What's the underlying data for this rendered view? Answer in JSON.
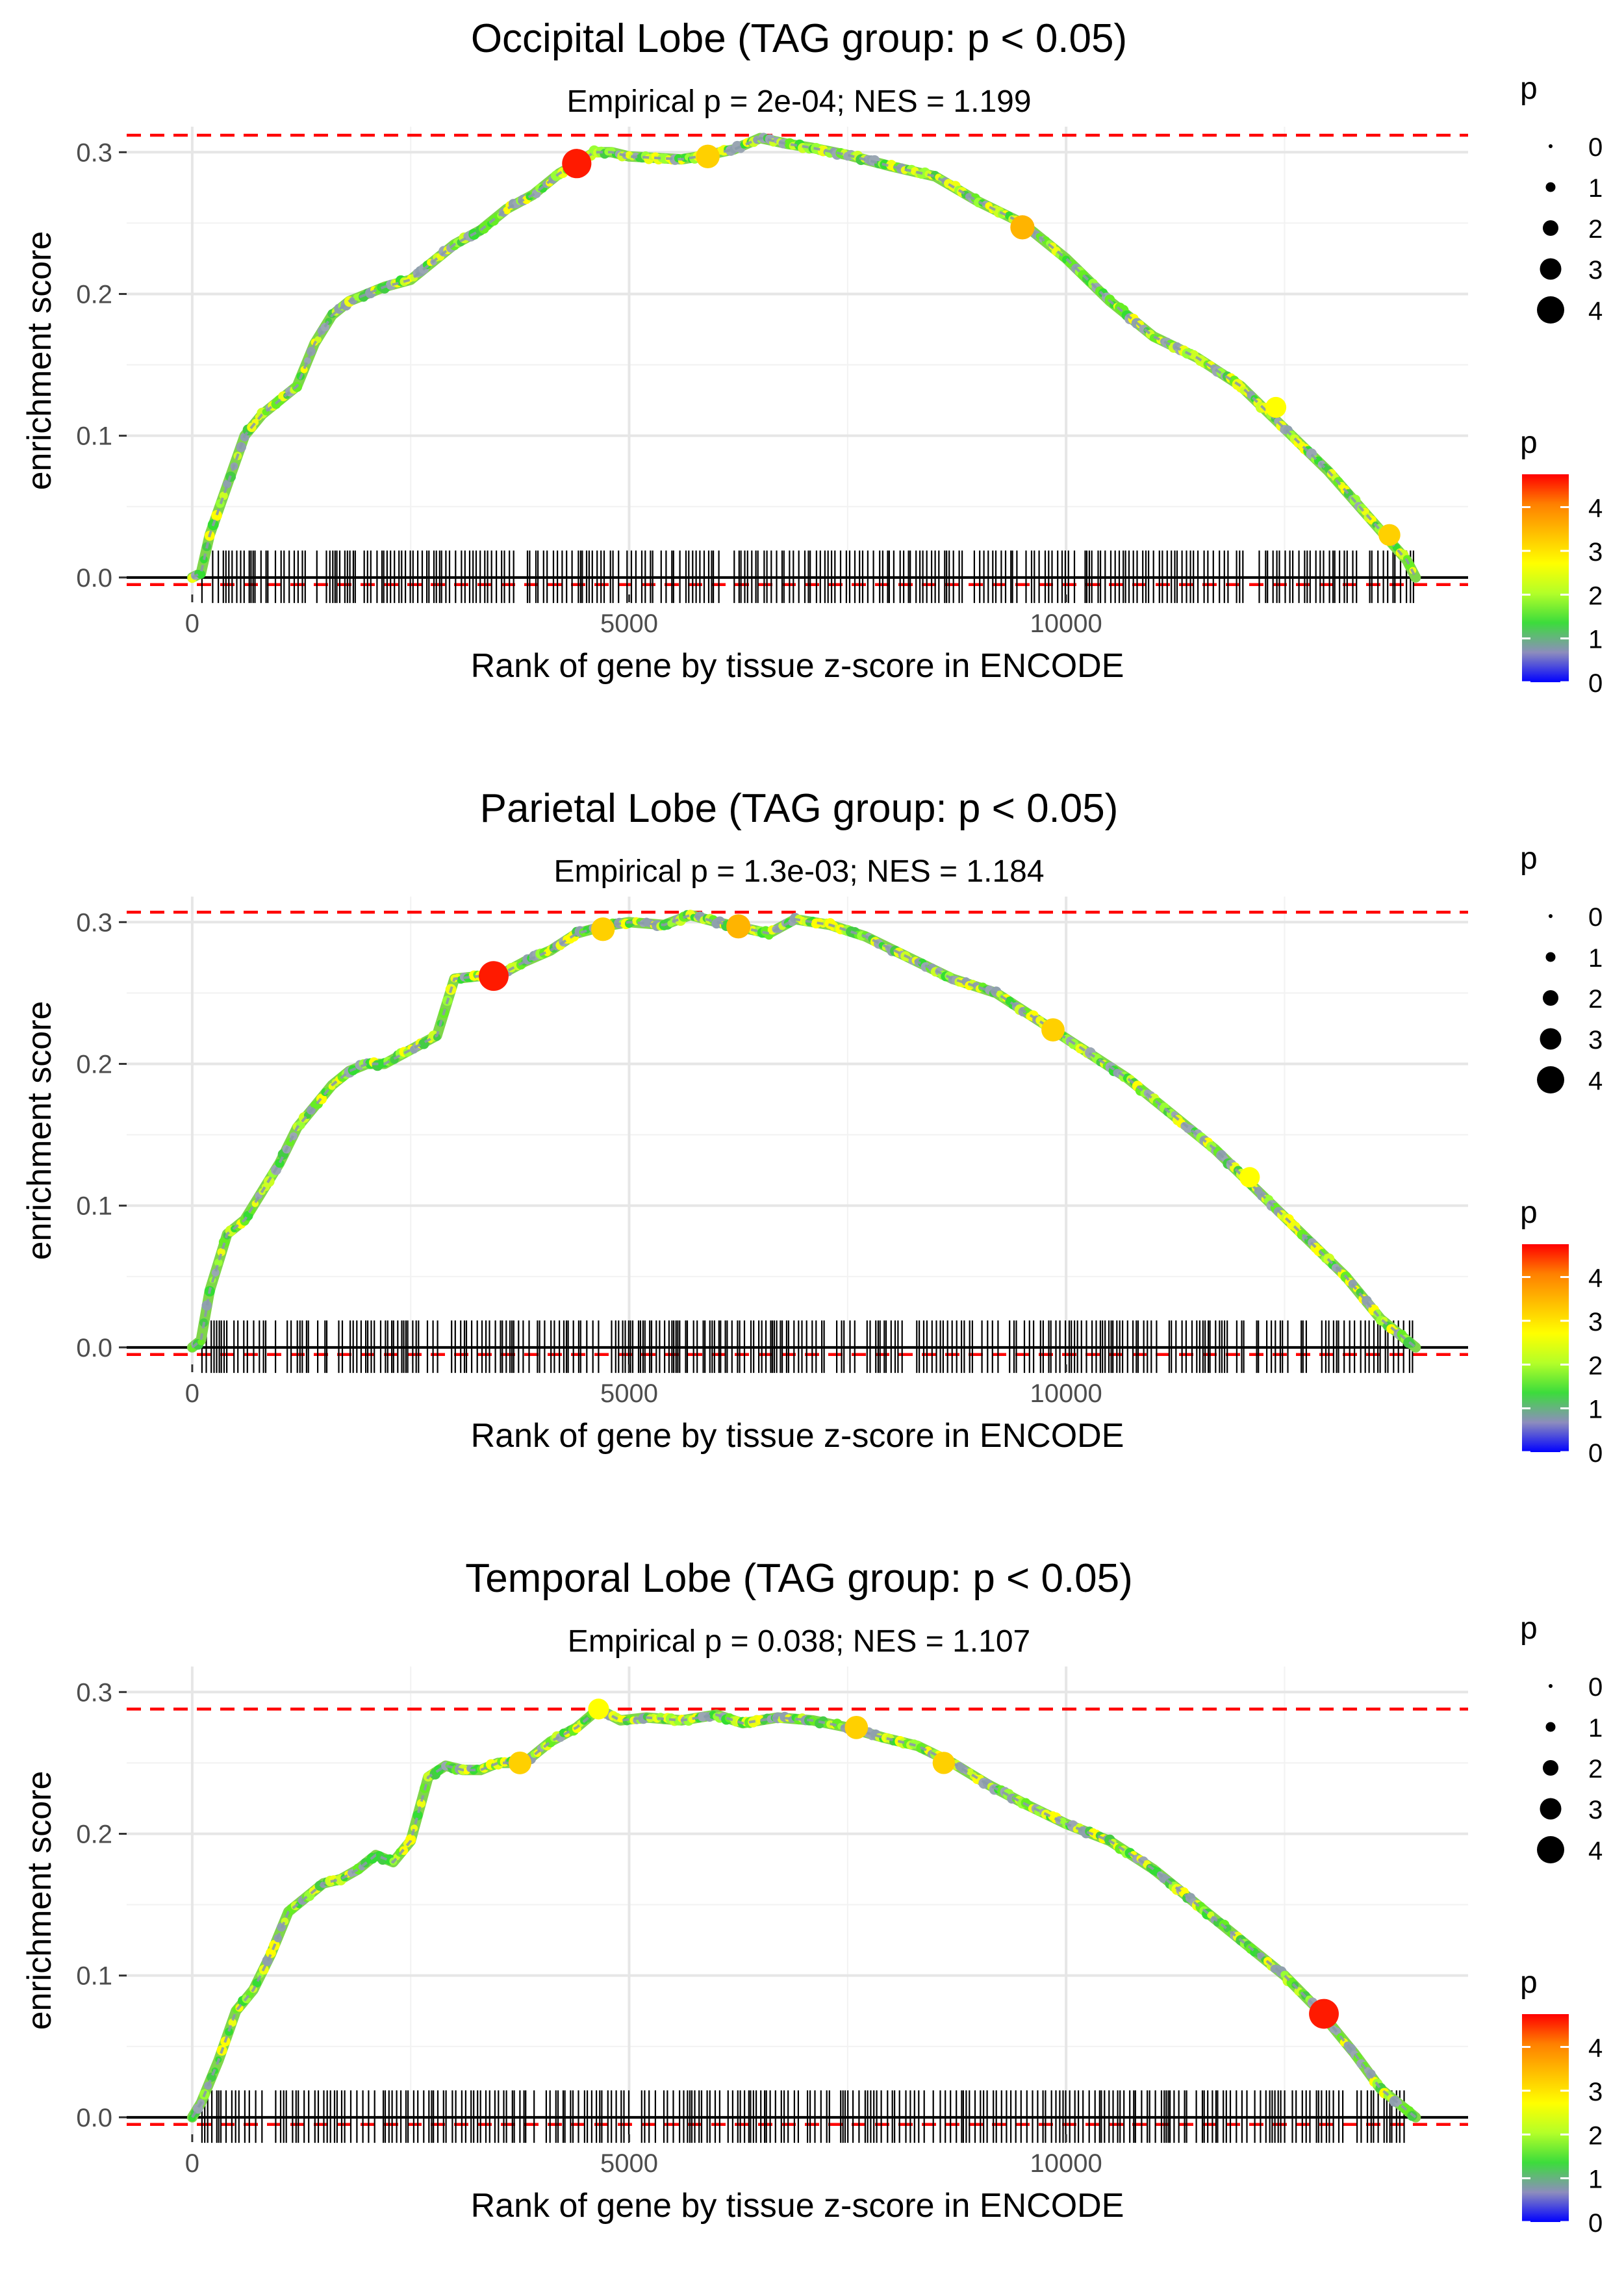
{
  "chart_data": [
    {
      "type": "line",
      "title": "Occipital Lobe (TAG group: p < 0.05)",
      "subtitle": "Empirical p = 2e-04; NES = 1.199",
      "xlabel": "Rank of gene by tissue z-score in ENCODE",
      "ylabel": "enrichment score",
      "xlim": [
        -750,
        14600
      ],
      "ylim": [
        -0.012,
        0.318
      ],
      "xticks": [
        0,
        5000,
        10000
      ],
      "xtick_labels": [
        "0",
        "5000",
        "10000"
      ],
      "yticks": [
        0.0,
        0.1,
        0.2,
        0.3
      ],
      "ytick_labels": [
        "0.0",
        "0.1",
        "0.2",
        "0.3"
      ],
      "max_es": 0.312,
      "min_es": -0.005,
      "rank_max": 14000,
      "curve": [
        [
          0,
          0.0
        ],
        [
          100,
          0.003
        ],
        [
          200,
          0.03
        ],
        [
          400,
          0.065
        ],
        [
          600,
          0.1
        ],
        [
          800,
          0.115
        ],
        [
          1000,
          0.125
        ],
        [
          1200,
          0.135
        ],
        [
          1400,
          0.165
        ],
        [
          1600,
          0.185
        ],
        [
          1800,
          0.195
        ],
        [
          2000,
          0.2
        ],
        [
          2200,
          0.205
        ],
        [
          2500,
          0.21
        ],
        [
          2800,
          0.225
        ],
        [
          3000,
          0.235
        ],
        [
          3300,
          0.245
        ],
        [
          3600,
          0.26
        ],
        [
          3900,
          0.27
        ],
        [
          4200,
          0.285
        ],
        [
          4400,
          0.292
        ],
        [
          4600,
          0.3
        ],
        [
          4800,
          0.3
        ],
        [
          5000,
          0.297
        ],
        [
          5300,
          0.296
        ],
        [
          5600,
          0.295
        ],
        [
          5900,
          0.298
        ],
        [
          6200,
          0.302
        ],
        [
          6500,
          0.31
        ],
        [
          6800,
          0.306
        ],
        [
          7100,
          0.303
        ],
        [
          7500,
          0.298
        ],
        [
          8000,
          0.29
        ],
        [
          8500,
          0.283
        ],
        [
          9000,
          0.265
        ],
        [
          9500,
          0.25
        ],
        [
          10000,
          0.225
        ],
        [
          10500,
          0.195
        ],
        [
          11000,
          0.17
        ],
        [
          11500,
          0.155
        ],
        [
          12000,
          0.135
        ],
        [
          12500,
          0.105
        ],
        [
          13000,
          0.075
        ],
        [
          13500,
          0.04
        ],
        [
          13900,
          0.012
        ],
        [
          14000,
          0.0
        ]
      ],
      "highlights": [
        [
          4400,
          0.292,
          4.6
        ],
        [
          5900,
          0.297,
          3.4
        ],
        [
          9500,
          0.247,
          3.5
        ],
        [
          12400,
          0.12,
          2.8
        ],
        [
          13700,
          0.03,
          3.0
        ]
      ],
      "hits_seed": 11,
      "size_legend": {
        "title": "p",
        "labels": [
          "0",
          "1",
          "2",
          "3",
          "4"
        ]
      },
      "color_legend": {
        "title": "p",
        "labels": [
          "4",
          "3",
          "2",
          "1",
          "0"
        ],
        "stops": [
          "#0000ff",
          "#8d8dbd",
          "#3cdc3c",
          "#b4ff28",
          "#ffff00",
          "#ffc000",
          "#ff8000",
          "#ff0000"
        ]
      }
    },
    {
      "type": "line",
      "title": "Parietal Lobe (TAG group: p < 0.05)",
      "subtitle": "Empirical p = 1.3e-03; NES = 1.184",
      "xlabel": "Rank of gene by tissue z-score in ENCODE",
      "ylabel": "enrichment score",
      "xlim": [
        -750,
        14600
      ],
      "ylim": [
        -0.012,
        0.318
      ],
      "xticks": [
        0,
        5000,
        10000
      ],
      "xtick_labels": [
        "0",
        "5000",
        "10000"
      ],
      "yticks": [
        0.0,
        0.1,
        0.2,
        0.3
      ],
      "ytick_labels": [
        "0.0",
        "0.1",
        "0.2",
        "0.3"
      ],
      "max_es": 0.307,
      "min_es": -0.005,
      "rank_max": 14000,
      "curve": [
        [
          0,
          0.0
        ],
        [
          100,
          0.005
        ],
        [
          200,
          0.04
        ],
        [
          300,
          0.06
        ],
        [
          400,
          0.08
        ],
        [
          600,
          0.09
        ],
        [
          800,
          0.11
        ],
        [
          1000,
          0.13
        ],
        [
          1200,
          0.155
        ],
        [
          1400,
          0.17
        ],
        [
          1600,
          0.185
        ],
        [
          1800,
          0.195
        ],
        [
          2000,
          0.2
        ],
        [
          2200,
          0.2
        ],
        [
          2500,
          0.21
        ],
        [
          2800,
          0.22
        ],
        [
          3000,
          0.26
        ],
        [
          3300,
          0.262
        ],
        [
          3500,
          0.262
        ],
        [
          3800,
          0.272
        ],
        [
          4100,
          0.28
        ],
        [
          4400,
          0.292
        ],
        [
          4700,
          0.297
        ],
        [
          5000,
          0.3
        ],
        [
          5400,
          0.298
        ],
        [
          5700,
          0.305
        ],
        [
          6000,
          0.3
        ],
        [
          6300,
          0.296
        ],
        [
          6600,
          0.292
        ],
        [
          6900,
          0.302
        ],
        [
          7300,
          0.298
        ],
        [
          7700,
          0.29
        ],
        [
          8200,
          0.275
        ],
        [
          8700,
          0.26
        ],
        [
          9200,
          0.25
        ],
        [
          9700,
          0.23
        ],
        [
          10200,
          0.21
        ],
        [
          10700,
          0.19
        ],
        [
          11200,
          0.165
        ],
        [
          11700,
          0.14
        ],
        [
          12200,
          0.11
        ],
        [
          12700,
          0.08
        ],
        [
          13200,
          0.05
        ],
        [
          13600,
          0.02
        ],
        [
          14000,
          0.0
        ]
      ],
      "highlights": [
        [
          3450,
          0.262,
          4.7
        ],
        [
          4700,
          0.295,
          3.4
        ],
        [
          6250,
          0.297,
          3.5
        ],
        [
          9850,
          0.224,
          3.3
        ],
        [
          12100,
          0.12,
          2.7
        ]
      ],
      "hits_seed": 23,
      "size_legend": {
        "title": "p",
        "labels": [
          "0",
          "1",
          "2",
          "3",
          "4"
        ]
      },
      "color_legend": {
        "title": "p",
        "labels": [
          "4",
          "3",
          "2",
          "1",
          "0"
        ],
        "stops": [
          "#0000ff",
          "#8d8dbd",
          "#3cdc3c",
          "#b4ff28",
          "#ffff00",
          "#ffc000",
          "#ff8000",
          "#ff0000"
        ]
      }
    },
    {
      "type": "line",
      "title": "Temporal Lobe (TAG group: p < 0.05)",
      "subtitle": "Empirical p = 0.038; NES = 1.107",
      "xlabel": "Rank of gene by tissue z-score in ENCODE",
      "ylabel": "enrichment score",
      "xlim": [
        -750,
        14600
      ],
      "ylim": [
        -0.012,
        0.318
      ],
      "xticks": [
        0,
        5000,
        10000
      ],
      "xtick_labels": [
        "0",
        "5000",
        "10000"
      ],
      "yticks": [
        0.0,
        0.1,
        0.2,
        0.3
      ],
      "ytick_labels": [
        "0.0",
        "0.1",
        "0.2",
        "0.3"
      ],
      "max_es": 0.288,
      "min_es": -0.005,
      "rank_max": 14000,
      "curve": [
        [
          0,
          0.0
        ],
        [
          100,
          0.01
        ],
        [
          300,
          0.04
        ],
        [
          500,
          0.075
        ],
        [
          700,
          0.09
        ],
        [
          900,
          0.115
        ],
        [
          1100,
          0.145
        ],
        [
          1300,
          0.155
        ],
        [
          1500,
          0.165
        ],
        [
          1700,
          0.168
        ],
        [
          1900,
          0.175
        ],
        [
          2100,
          0.185
        ],
        [
          2300,
          0.18
        ],
        [
          2500,
          0.195
        ],
        [
          2700,
          0.24
        ],
        [
          2900,
          0.248
        ],
        [
          3100,
          0.245
        ],
        [
          3300,
          0.245
        ],
        [
          3500,
          0.25
        ],
        [
          3800,
          0.25
        ],
        [
          4100,
          0.265
        ],
        [
          4400,
          0.275
        ],
        [
          4650,
          0.288
        ],
        [
          4900,
          0.28
        ],
        [
          5200,
          0.282
        ],
        [
          5600,
          0.28
        ],
        [
          6000,
          0.284
        ],
        [
          6300,
          0.278
        ],
        [
          6700,
          0.282
        ],
        [
          7100,
          0.28
        ],
        [
          7500,
          0.275
        ],
        [
          7900,
          0.268
        ],
        [
          8300,
          0.262
        ],
        [
          8700,
          0.25
        ],
        [
          9100,
          0.235
        ],
        [
          9500,
          0.222
        ],
        [
          10000,
          0.207
        ],
        [
          10500,
          0.195
        ],
        [
          11000,
          0.175
        ],
        [
          11500,
          0.15
        ],
        [
          12000,
          0.125
        ],
        [
          12500,
          0.1
        ],
        [
          12900,
          0.075
        ],
        [
          13300,
          0.045
        ],
        [
          13600,
          0.02
        ],
        [
          14000,
          0.0
        ]
      ],
      "highlights": [
        [
          3750,
          0.25,
          3.2
        ],
        [
          7600,
          0.275,
          3.3
        ],
        [
          8600,
          0.25,
          3.1
        ],
        [
          12950,
          0.073,
          4.7
        ],
        [
          4650,
          0.288,
          2.8
        ]
      ],
      "hits_seed": 37,
      "size_legend": {
        "title": "p",
        "labels": [
          "0",
          "1",
          "2",
          "3",
          "4"
        ]
      },
      "color_legend": {
        "title": "p",
        "labels": [
          "4",
          "3",
          "2",
          "1",
          "0"
        ],
        "stops": [
          "#0000ff",
          "#8d8dbd",
          "#3cdc3c",
          "#b4ff28",
          "#ffff00",
          "#ffc000",
          "#ff8000",
          "#ff0000"
        ]
      }
    }
  ]
}
